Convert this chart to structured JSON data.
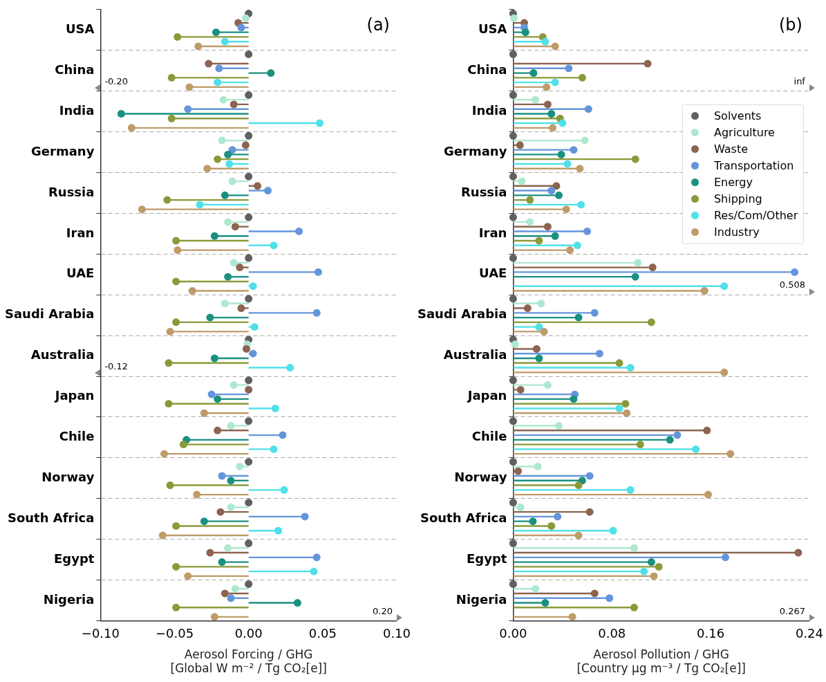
{
  "chart_data": [
    {
      "type": "lollipop",
      "orientation": "horizontal",
      "xlabel": "Aerosol Forcing / GHG\n[Global W m⁻² / Tg CO₂[e]]",
      "categories": [
        "USA",
        "China",
        "India",
        "Germany",
        "Russia",
        "Iran",
        "UAE",
        "Saudi Arabia",
        "Australia",
        "Japan",
        "Chile",
        "Norway",
        "South Africa",
        "Egypt",
        "Nigeria"
      ],
      "xlim": [
        -0.1,
        0.1
      ],
      "xticks": [
        {
          "value": -0.1,
          "label": "−0.10"
        },
        {
          "value": -0.05,
          "label": "−0.05"
        },
        {
          "value": 0,
          "label": "0.00"
        },
        {
          "value": 0.05,
          "label": "0.05"
        },
        {
          "value": 0.1,
          "label": "0.10"
        }
      ],
      "grid": "y",
      "marker": "circle",
      "series": [
        {
          "color": "#606060",
          "values": [
            0,
            0,
            0,
            0,
            0,
            0,
            0,
            0,
            0,
            0,
            0,
            0,
            0,
            0,
            0
          ]
        },
        {
          "color": "#aee8cf",
          "values": [
            -0.002,
            null,
            -0.017,
            -0.018,
            -0.011,
            -0.014,
            -0.01,
            -0.016,
            -0.001,
            -0.01,
            -0.012,
            -0.006,
            -0.012,
            -0.014,
            -0.009
          ]
        },
        {
          "color": "#8c6450",
          "values": [
            -0.007,
            -0.027,
            -0.01,
            -0.002,
            0.006,
            -0.009,
            -0.006,
            -0.005,
            -0.0015,
            0,
            -0.021,
            null,
            -0.019,
            -0.026,
            -0.016
          ]
        },
        {
          "color": "#6495dc",
          "values": [
            -0.005,
            -0.02,
            -0.041,
            -0.011,
            0.013,
            0.034,
            0.047,
            0.046,
            0.003,
            -0.025,
            0.023,
            -0.018,
            0.038,
            0.046,
            -0.012
          ]
        },
        {
          "color": "#1a9080",
          "values": [
            -0.022,
            0.015,
            -0.086,
            -0.014,
            -0.016,
            -0.023,
            -0.014,
            -0.026,
            -0.023,
            -0.021,
            -0.042,
            -0.012,
            -0.03,
            -0.018,
            0.033
          ]
        },
        {
          "color": "#8a9a3a",
          "values": [
            -0.048,
            -0.052,
            -0.052,
            -0.021,
            -0.055,
            -0.049,
            -0.049,
            -0.049,
            -0.054,
            -0.054,
            -0.044,
            -0.053,
            -0.049,
            -0.049,
            -0.049
          ]
        },
        {
          "color": "#50e0e8",
          "values": [
            -0.016,
            -0.021,
            0.048,
            -0.013,
            -0.033,
            0.017,
            0.003,
            0.004,
            0.028,
            0.018,
            0.017,
            0.024,
            0.02,
            0.044,
            null
          ]
        },
        {
          "color": "#bf9b6a",
          "values": [
            -0.034,
            -0.04,
            -0.079,
            -0.028,
            -0.072,
            -0.048,
            -0.038,
            -0.053,
            null,
            -0.03,
            -0.057,
            -0.035,
            -0.058,
            -0.041,
            -0.023
          ]
        }
      ],
      "annotations": [
        "(a)",
        "-0.20",
        "-0.12",
        "0.20"
      ]
    },
    {
      "type": "lollipop",
      "orientation": "horizontal",
      "xlabel": "Aerosol Pollution / GHG\n[Country μg m⁻³ / Tg CO₂[e]]",
      "categories": [
        "USA",
        "China",
        "India",
        "Germany",
        "Russia",
        "Iran",
        "UAE",
        "Saudi Arabia",
        "Australia",
        "Japan",
        "Chile",
        "Norway",
        "South Africa",
        "Egypt",
        "Nigeria"
      ],
      "xlim": [
        0,
        0.24
      ],
      "xticks": [
        {
          "value": 0,
          "label": "0.00"
        },
        0.08,
        0.16,
        0.24
      ],
      "grid": "y",
      "marker": "circle",
      "legend": "top right",
      "series": [
        {
          "name": "Solvents",
          "color": "#606060",
          "values": [
            0,
            0,
            0,
            0,
            0,
            0,
            0,
            0,
            0,
            0,
            0,
            0,
            0,
            0,
            0
          ]
        },
        {
          "name": "Agriculture",
          "color": "#aee8cf",
          "values": [
            0.0006,
            null,
            0.018,
            0.058,
            0.007,
            0.0136,
            0.101,
            0.0226,
            0.0016,
            0.028,
            0.037,
            0.02,
            0.006,
            0.098,
            0.018
          ]
        },
        {
          "name": "Waste",
          "color": "#8c6450",
          "values": [
            0.009,
            0.109,
            0.028,
            0.0055,
            0.035,
            0.028,
            0.113,
            0.0117,
            0.019,
            0.006,
            0.157,
            0.004,
            0.062,
            0.231,
            0.066
          ]
        },
        {
          "name": "Transportation",
          "color": "#6495dc",
          "values": [
            0.009,
            0.045,
            0.061,
            0.049,
            0.031,
            0.06,
            0.228,
            0.066,
            0.07,
            0.05,
            0.133,
            0.062,
            0.036,
            0.172,
            0.078
          ]
        },
        {
          "name": "Energy",
          "color": "#1a9080",
          "values": [
            0.01,
            0.0165,
            0.031,
            0.039,
            0.037,
            0.034,
            0.099,
            0.053,
            0.021,
            0.049,
            0.127,
            0.056,
            0.016,
            0.112,
            0.026
          ]
        },
        {
          "name": "Shipping",
          "color": "#8a9a3a",
          "values": [
            0.024,
            0.056,
            0.038,
            0.099,
            0.0136,
            0.021,
            null,
            0.112,
            0.086,
            0.091,
            0.103,
            0.053,
            0.031,
            0.118,
            0.098
          ]
        },
        {
          "name": "Res/Com/Other",
          "color": "#50e0e8",
          "values": [
            0.026,
            0.034,
            0.04,
            0.044,
            0.055,
            0.052,
            0.171,
            0.021,
            0.095,
            0.086,
            0.148,
            0.095,
            0.081,
            0.106,
            null
          ]
        },
        {
          "name": "Industry",
          "color": "#bf9b6a",
          "values": [
            0.034,
            0.027,
            0.032,
            0.054,
            0.043,
            0.046,
            0.155,
            0.025,
            0.171,
            0.092,
            0.176,
            0.158,
            0.053,
            0.114,
            0.048
          ]
        }
      ],
      "annotations": [
        "(b)",
        "inf",
        "0.508",
        "0.267"
      ]
    }
  ]
}
